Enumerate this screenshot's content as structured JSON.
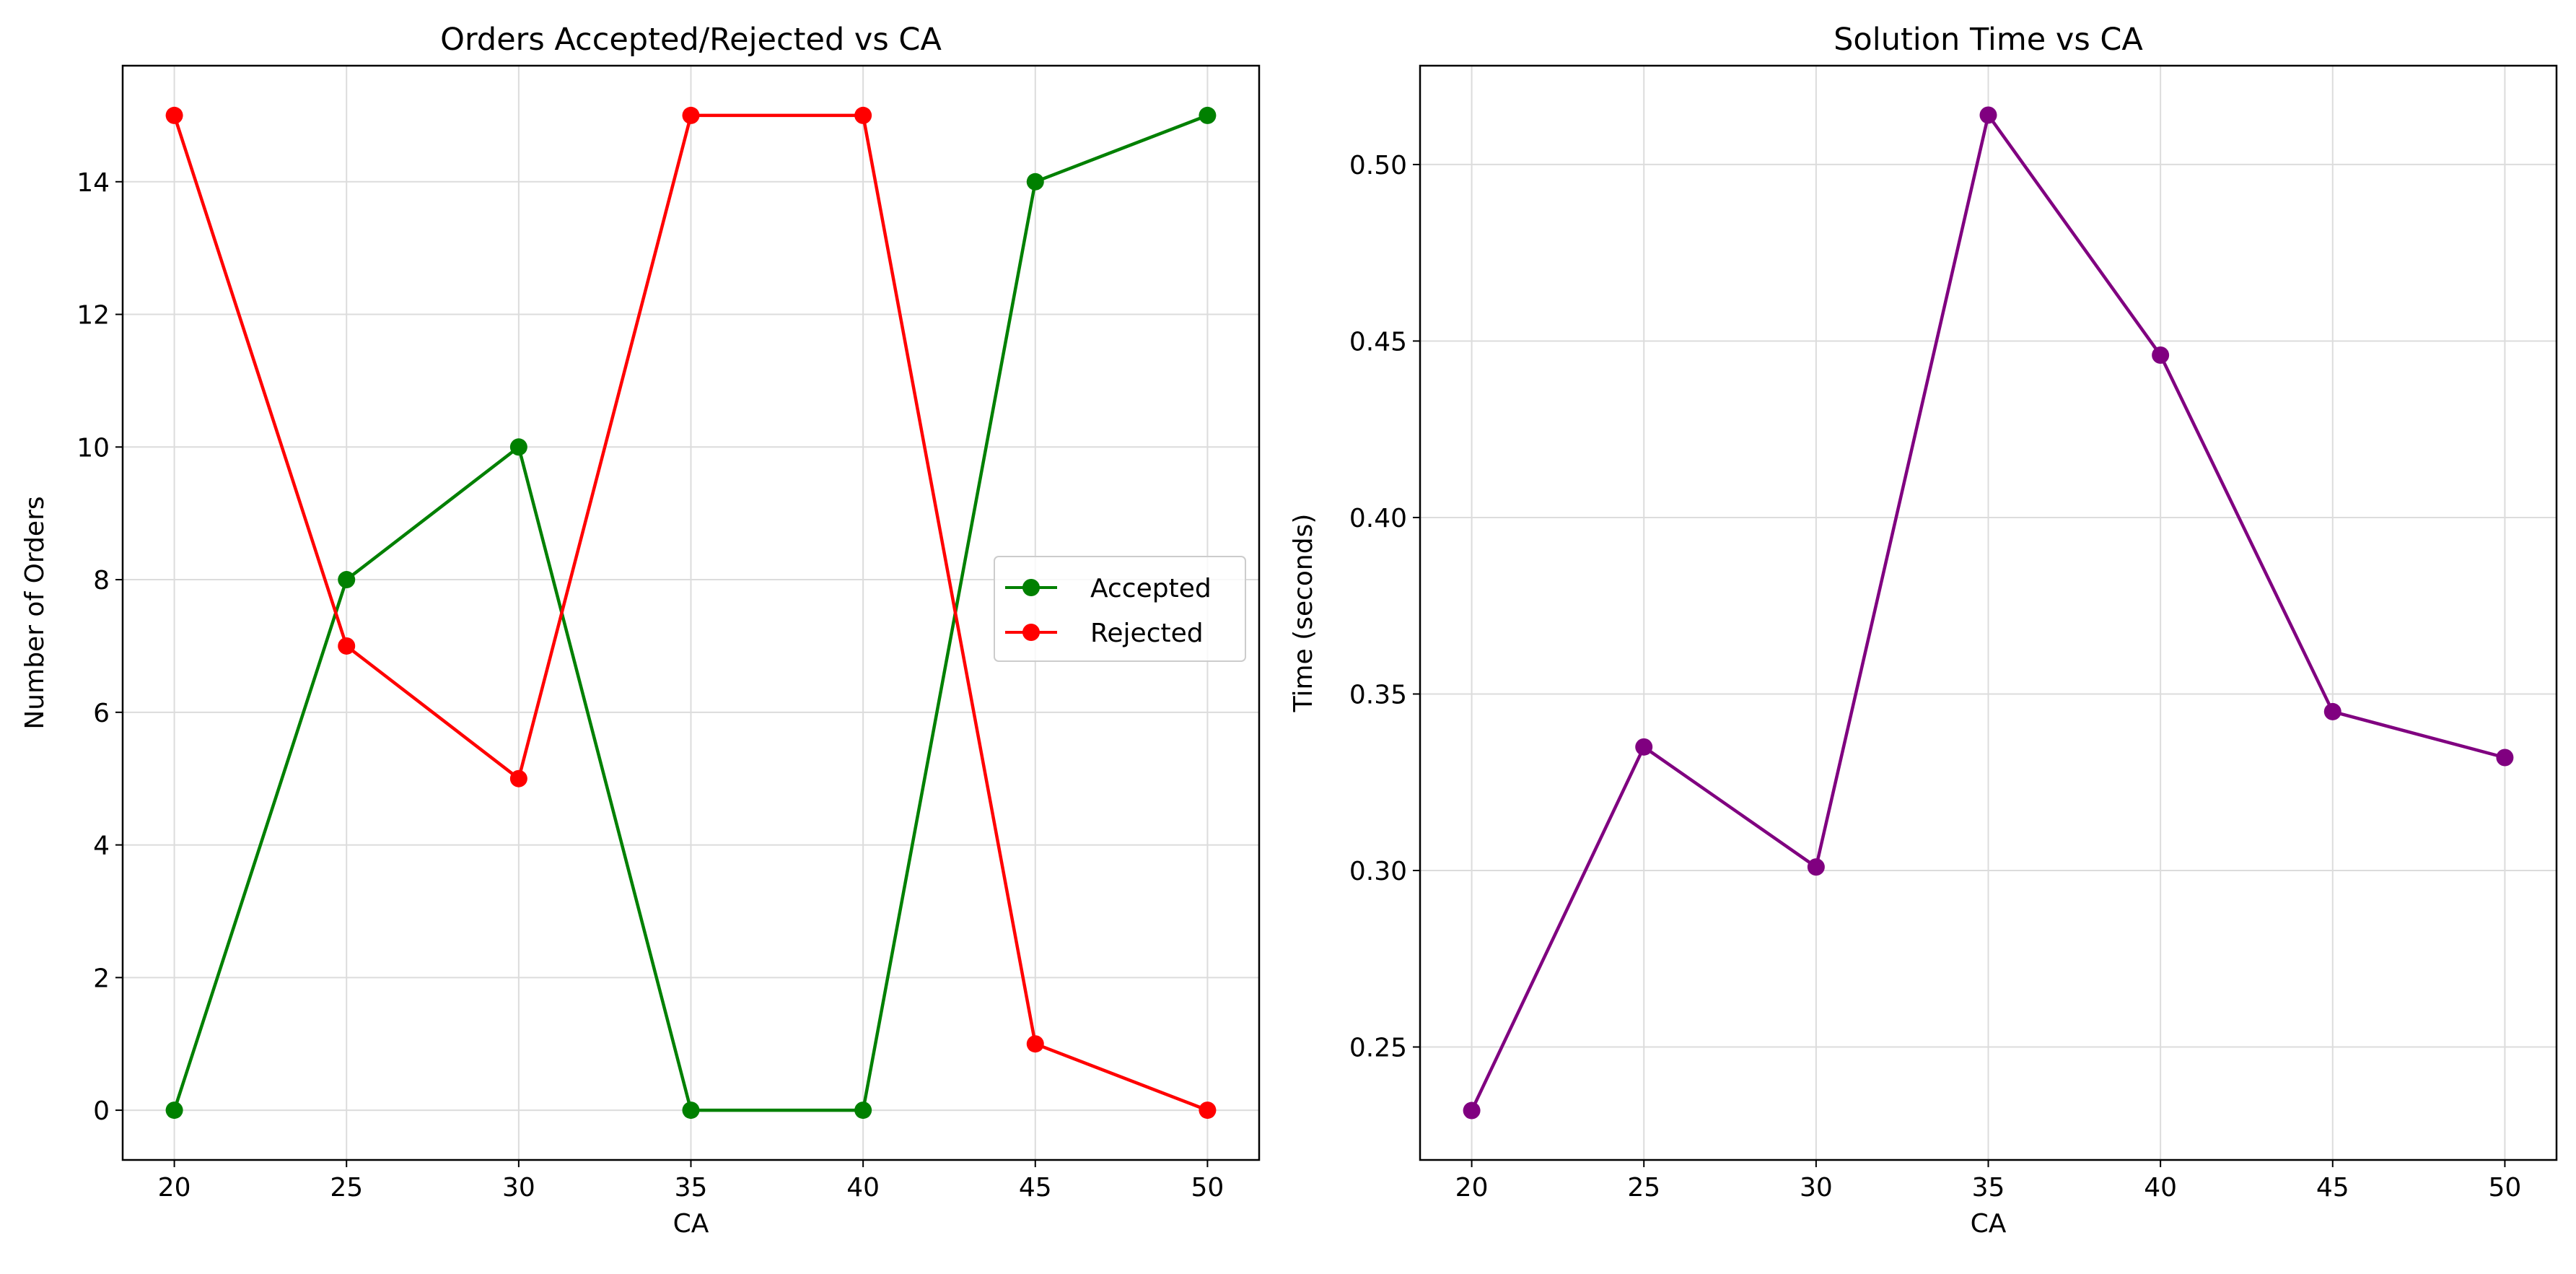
{
  "chart_data": [
    {
      "type": "line",
      "title": "Orders Accepted/Rejected vs CA",
      "xlabel": "CA",
      "ylabel": "Number of Orders",
      "x": [
        20,
        25,
        30,
        35,
        40,
        45,
        50
      ],
      "xticks": [
        "20",
        "25",
        "30",
        "35",
        "40",
        "45",
        "50"
      ],
      "yticks": [
        "0",
        "2",
        "4",
        "6",
        "8",
        "10",
        "12",
        "14"
      ],
      "xlim": [
        18.5,
        51.5
      ],
      "ylim": [
        -0.75,
        15.75
      ],
      "grid": true,
      "legend_position": "center-right",
      "series": [
        {
          "name": "Accepted",
          "color": "#008000",
          "marker": "circle",
          "values": [
            0,
            8,
            10,
            0,
            0,
            14,
            15
          ]
        },
        {
          "name": "Rejected",
          "color": "#ff0000",
          "marker": "circle",
          "values": [
            15,
            7,
            5,
            15,
            15,
            1,
            0
          ]
        }
      ]
    },
    {
      "type": "line",
      "title": "Solution Time vs CA",
      "xlabel": "CA",
      "ylabel": "Time (seconds)",
      "x": [
        20,
        25,
        30,
        35,
        40,
        45,
        50
      ],
      "xticks": [
        "20",
        "25",
        "30",
        "35",
        "40",
        "45",
        "50"
      ],
      "yticks": [
        "0.25",
        "0.30",
        "0.35",
        "0.40",
        "0.45",
        "0.50"
      ],
      "xlim": [
        18.5,
        51.5
      ],
      "ylim": [
        0.218,
        0.528
      ],
      "grid": true,
      "series": [
        {
          "color": "#800080",
          "marker": "circle",
          "values": [
            0.232,
            0.335,
            0.301,
            0.514,
            0.446,
            0.345,
            0.332
          ]
        }
      ]
    }
  ]
}
